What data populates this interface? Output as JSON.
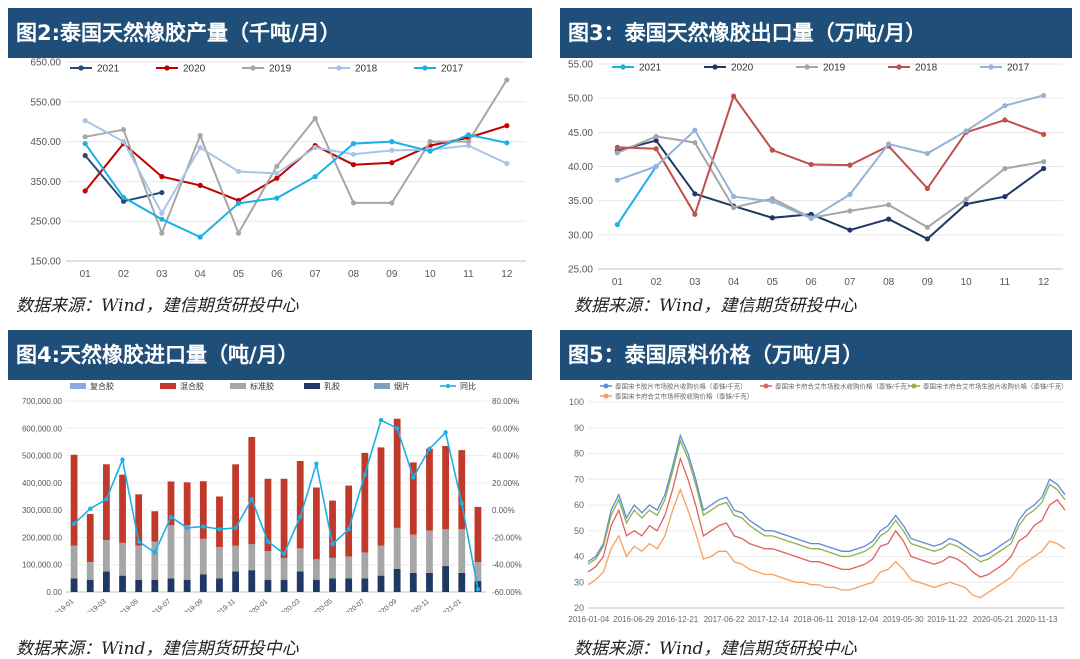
{
  "panels": {
    "p2": {
      "title": "图2:泰国天然橡胶产量（千吨/月）",
      "source": "数据来源：Wind，建信期货研投中心"
    },
    "p3": {
      "title": "图3：泰国天然橡胶出口量（万吨/月）",
      "source": "数据来源：Wind，建信期货研投中心"
    },
    "p4": {
      "title": "图4:天然橡胶进口量（吨/月）",
      "source": "数据来源：Wind，建信期货研投中心"
    },
    "p5": {
      "title": "图5：泰国原料价格（万吨/月）",
      "source": "数据来源：Wind，建信期货研投中心"
    }
  },
  "colors": {
    "header": "#1f4e79"
  },
  "chart_data": [
    {
      "id": "fig2",
      "type": "line",
      "categories": [
        "01",
        "02",
        "03",
        "04",
        "05",
        "06",
        "07",
        "08",
        "09",
        "10",
        "11",
        "12"
      ],
      "yticks": [
        "150.00",
        "250.00",
        "350.00",
        "450.00",
        "550.00",
        "650.00"
      ],
      "ylim": [
        150,
        650
      ],
      "legend_position": "top",
      "series": [
        {
          "name": "2021",
          "color": "#2a4b78",
          "values": [
            415,
            300,
            322,
            null,
            null,
            null,
            null,
            null,
            null,
            null,
            null,
            null
          ]
        },
        {
          "name": "2020",
          "color": "#c00000",
          "values": [
            326,
            445,
            362,
            340,
            302,
            358,
            440,
            392,
            397,
            440,
            460,
            490
          ]
        },
        {
          "name": "2019",
          "color": "#a6a6a6",
          "values": [
            462,
            480,
            220,
            465,
            220,
            388,
            508,
            296,
            296,
            450,
            450,
            605
          ]
        },
        {
          "name": "2018",
          "color": "#a9c4e8",
          "values": [
            503,
            450,
            270,
            435,
            375,
            370,
            435,
            418,
            428,
            430,
            440,
            395
          ]
        },
        {
          "name": "2017",
          "color": "#1ab0e8",
          "values": [
            445,
            310,
            255,
            210,
            295,
            308,
            362,
            445,
            450,
            426,
            467,
            447
          ]
        }
      ]
    },
    {
      "id": "fig3",
      "type": "line",
      "categories": [
        "01",
        "02",
        "03",
        "04",
        "05",
        "06",
        "07",
        "08",
        "09",
        "10",
        "11",
        "12"
      ],
      "yticks": [
        "25.00",
        "30.00",
        "35.00",
        "40.00",
        "45.00",
        "50.00",
        "55.00"
      ],
      "ylim": [
        25,
        55
      ],
      "legend_position": "top",
      "series": [
        {
          "name": "2021",
          "color": "#1ab0e8",
          "values": [
            31.5,
            40.0,
            null,
            null,
            null,
            null,
            null,
            null,
            null,
            null,
            null,
            null
          ]
        },
        {
          "name": "2020",
          "color": "#1f3864",
          "values": [
            42.3,
            43.8,
            36.0,
            34.2,
            32.5,
            33.0,
            30.7,
            32.3,
            29.4,
            34.5,
            35.6,
            39.7
          ]
        },
        {
          "name": "2019",
          "color": "#a6a6a6",
          "values": [
            42.0,
            44.4,
            43.5,
            34.0,
            35.3,
            32.5,
            33.5,
            34.4,
            31.1,
            35.2,
            39.7,
            40.7
          ]
        },
        {
          "name": "2018",
          "color": "#c0504d",
          "values": [
            42.8,
            42.6,
            33.0,
            50.3,
            42.4,
            40.3,
            40.2,
            43.0,
            36.8,
            45.0,
            46.8,
            44.7
          ]
        },
        {
          "name": "2017",
          "color": "#95b3d7",
          "values": [
            38.0,
            40.0,
            45.3,
            35.6,
            34.9,
            32.4,
            35.9,
            43.3,
            41.9,
            45.2,
            48.9,
            50.4
          ]
        }
      ]
    },
    {
      "id": "fig4",
      "type": "bar",
      "legend": [
        "复合胶",
        "混合胶",
        "标准胶",
        "乳胶",
        "烟片",
        "同比"
      ],
      "bar_colors": [
        "#8eaadb",
        "#c0392b",
        "#a6a6a6",
        "#1f3864",
        "#7f9cc9"
      ],
      "line_color": "#1ab0e8",
      "yticks_left": [
        "0.00",
        "100,000.00",
        "200,000.00",
        "300,000.00",
        "400,000.00",
        "500,000.00",
        "600,000.00",
        "700,000.00"
      ],
      "ylim_left": [
        0,
        700000
      ],
      "yticks_right": [
        "-60.00%",
        "-40.00%",
        "-20.00%",
        "0.00%",
        "20.00%",
        "40.00%",
        "60.00%",
        "80.00%"
      ],
      "ylim_right": [
        -60,
        80
      ],
      "xticks": [
        "2019-01",
        "2019-03",
        "2019-05",
        "2019-07",
        "2019-09",
        "2019-11",
        "2020-01",
        "2020-03",
        "2020-05",
        "2020-07",
        "2020-09",
        "2020-11",
        "2021-01"
      ],
      "periods": [
        {
          "total": 503000,
          "latex": 50000,
          "std": 120000,
          "yoy": -10
        },
        {
          "total": 286000,
          "latex": 45000,
          "std": 65000,
          "yoy": 1
        },
        {
          "total": 468000,
          "latex": 75000,
          "std": 115000,
          "yoy": 8
        },
        {
          "total": 430000,
          "latex": 60000,
          "std": 120000,
          "yoy": 37
        },
        {
          "total": 358000,
          "latex": 45000,
          "std": 125000,
          "yoy": -23
        },
        {
          "total": 296000,
          "latex": 45000,
          "std": 140000,
          "yoy": -31
        },
        {
          "total": 405000,
          "latex": 50000,
          "std": 195000,
          "yoy": -5
        },
        {
          "total": 402000,
          "latex": 45000,
          "std": 200000,
          "yoy": -13
        },
        {
          "total": 406000,
          "latex": 65000,
          "std": 130000,
          "yoy": -12
        },
        {
          "total": 350000,
          "latex": 50000,
          "std": 115000,
          "yoy": -14
        },
        {
          "total": 468000,
          "latex": 75000,
          "std": 95000,
          "yoy": -13
        },
        {
          "total": 568000,
          "latex": 80000,
          "std": 95000,
          "yoy": 8
        },
        {
          "total": 415000,
          "latex": 45000,
          "std": 105000,
          "yoy": -23
        },
        {
          "total": 415000,
          "latex": 45000,
          "std": 80000,
          "yoy": -32
        },
        {
          "total": 480000,
          "latex": 75000,
          "std": 85000,
          "yoy": -5
        },
        {
          "total": 383000,
          "latex": 45000,
          "std": 75000,
          "yoy": 34
        },
        {
          "total": 335000,
          "latex": 50000,
          "std": 75000,
          "yoy": -25
        },
        {
          "total": 390000,
          "latex": 50000,
          "std": 80000,
          "yoy": -14
        },
        {
          "total": 510000,
          "latex": 50000,
          "std": 95000,
          "yoy": 26
        },
        {
          "total": 530000,
          "latex": 60000,
          "std": 110000,
          "yoy": 66
        },
        {
          "total": 635000,
          "latex": 85000,
          "std": 150000,
          "yoy": 60
        },
        {
          "total": 475000,
          "latex": 70000,
          "std": 140000,
          "yoy": 24
        },
        {
          "total": 525000,
          "latex": 70000,
          "std": 155000,
          "yoy": 45
        },
        {
          "total": 535000,
          "latex": 95000,
          "std": 135000,
          "yoy": 57
        },
        {
          "total": 520000,
          "latex": 70000,
          "std": 160000,
          "yoy": 5
        },
        {
          "total": 312000,
          "latex": 40000,
          "std": 70000,
          "yoy": -58
        }
      ]
    },
    {
      "id": "fig5",
      "type": "line",
      "legend": [
        {
          "name": "泰国宋卡胶片市场胶片收购价格（泰铢/千克）",
          "color": "#5b8bd6"
        },
        {
          "name": "泰国宋卡府合艾市场胶水收购价格（泰铢/千克）",
          "color": "#e06060"
        },
        {
          "name": "泰国宋卡府合艾市场生胶片收购价格（泰铢/千克）",
          "color": "#8fb04e"
        },
        {
          "name": "泰国宋卡府合艾市场杯胶收购价格（泰铢/千克）",
          "color": "#f4a062"
        }
      ],
      "yticks": [
        "20",
        "30",
        "40",
        "50",
        "60",
        "70",
        "80",
        "90",
        "100"
      ],
      "ylim": [
        20,
        100
      ],
      "xticks": [
        "2016-01-04",
        "2016-06-29",
        "2016-12-21",
        "2017-06-22",
        "2017-12-14",
        "2018-06-11",
        "2018-12-04",
        "2019-05-30",
        "2019-11-22",
        "2020-05-21",
        "2020-11-13"
      ],
      "months": [
        "2016-01",
        "2016-02",
        "2016-03",
        "2016-04",
        "2016-05",
        "2016-06",
        "2016-07",
        "2016-08",
        "2016-09",
        "2016-10",
        "2016-11",
        "2016-12",
        "2017-01",
        "2017-02",
        "2017-03",
        "2017-04",
        "2017-05",
        "2017-06",
        "2017-07",
        "2017-08",
        "2017-09",
        "2017-10",
        "2017-11",
        "2017-12",
        "2018-01",
        "2018-02",
        "2018-03",
        "2018-04",
        "2018-05",
        "2018-06",
        "2018-07",
        "2018-08",
        "2018-09",
        "2018-10",
        "2018-11",
        "2018-12",
        "2019-01",
        "2019-02",
        "2019-03",
        "2019-04",
        "2019-05",
        "2019-06",
        "2019-07",
        "2019-08",
        "2019-09",
        "2019-10",
        "2019-11",
        "2019-12",
        "2020-01",
        "2020-02",
        "2020-03",
        "2020-04",
        "2020-05",
        "2020-06",
        "2020-07",
        "2020-08",
        "2020-09",
        "2020-10",
        "2020-11",
        "2020-12",
        "2021-01",
        "2021-02",
        "2021-03"
      ],
      "series": [
        {
          "name": "胶片",
          "values": [
            38,
            40,
            45,
            58,
            64,
            55,
            60,
            57,
            60,
            58,
            64,
            75,
            87,
            80,
            70,
            58,
            60,
            62,
            63,
            58,
            57,
            54,
            52,
            50,
            50,
            49,
            48,
            47,
            46,
            45,
            45,
            44,
            43,
            42,
            42,
            43,
            44,
            46,
            50,
            52,
            56,
            52,
            47,
            46,
            45,
            44,
            45,
            47,
            46,
            44,
            42,
            40,
            41,
            43,
            45,
            47,
            54,
            58,
            60,
            63,
            70,
            68,
            64
          ]
        },
        {
          "name": "胶水",
          "values": [
            34,
            36,
            40,
            52,
            58,
            48,
            50,
            48,
            52,
            50,
            56,
            66,
            78,
            70,
            60,
            48,
            50,
            52,
            53,
            48,
            47,
            45,
            44,
            43,
            43,
            42,
            41,
            40,
            39,
            38,
            38,
            37,
            36,
            35,
            35,
            36,
            37,
            39,
            44,
            45,
            50,
            46,
            40,
            39,
            38,
            37,
            38,
            40,
            39,
            37,
            34,
            32,
            33,
            35,
            37,
            40,
            46,
            48,
            52,
            54,
            60,
            62,
            58
          ]
        },
        {
          "name": "生胶片",
          "values": [
            37,
            39,
            44,
            56,
            62,
            53,
            58,
            55,
            58,
            56,
            62,
            73,
            85,
            78,
            68,
            56,
            58,
            60,
            61,
            56,
            55,
            52,
            50,
            48,
            48,
            47,
            46,
            45,
            44,
            43,
            43,
            42,
            41,
            40,
            40,
            41,
            42,
            44,
            48,
            50,
            54,
            50,
            45,
            44,
            43,
            42,
            43,
            45,
            44,
            42,
            40,
            38,
            39,
            41,
            43,
            45,
            52,
            56,
            58,
            61,
            68,
            66,
            62
          ]
        },
        {
          "name": "杯胶",
          "values": [
            29,
            31,
            34,
            43,
            48,
            40,
            44,
            42,
            45,
            43,
            48,
            58,
            66,
            58,
            49,
            39,
            40,
            42,
            42,
            38,
            37,
            35,
            34,
            33,
            33,
            32,
            31,
            30,
            30,
            29,
            29,
            28,
            28,
            27,
            27,
            28,
            29,
            30,
            34,
            35,
            38,
            35,
            31,
            30,
            29,
            28,
            29,
            30,
            29,
            28,
            25,
            24,
            26,
            28,
            30,
            32,
            36,
            38,
            40,
            42,
            46,
            45,
            43
          ]
        }
      ]
    }
  ]
}
